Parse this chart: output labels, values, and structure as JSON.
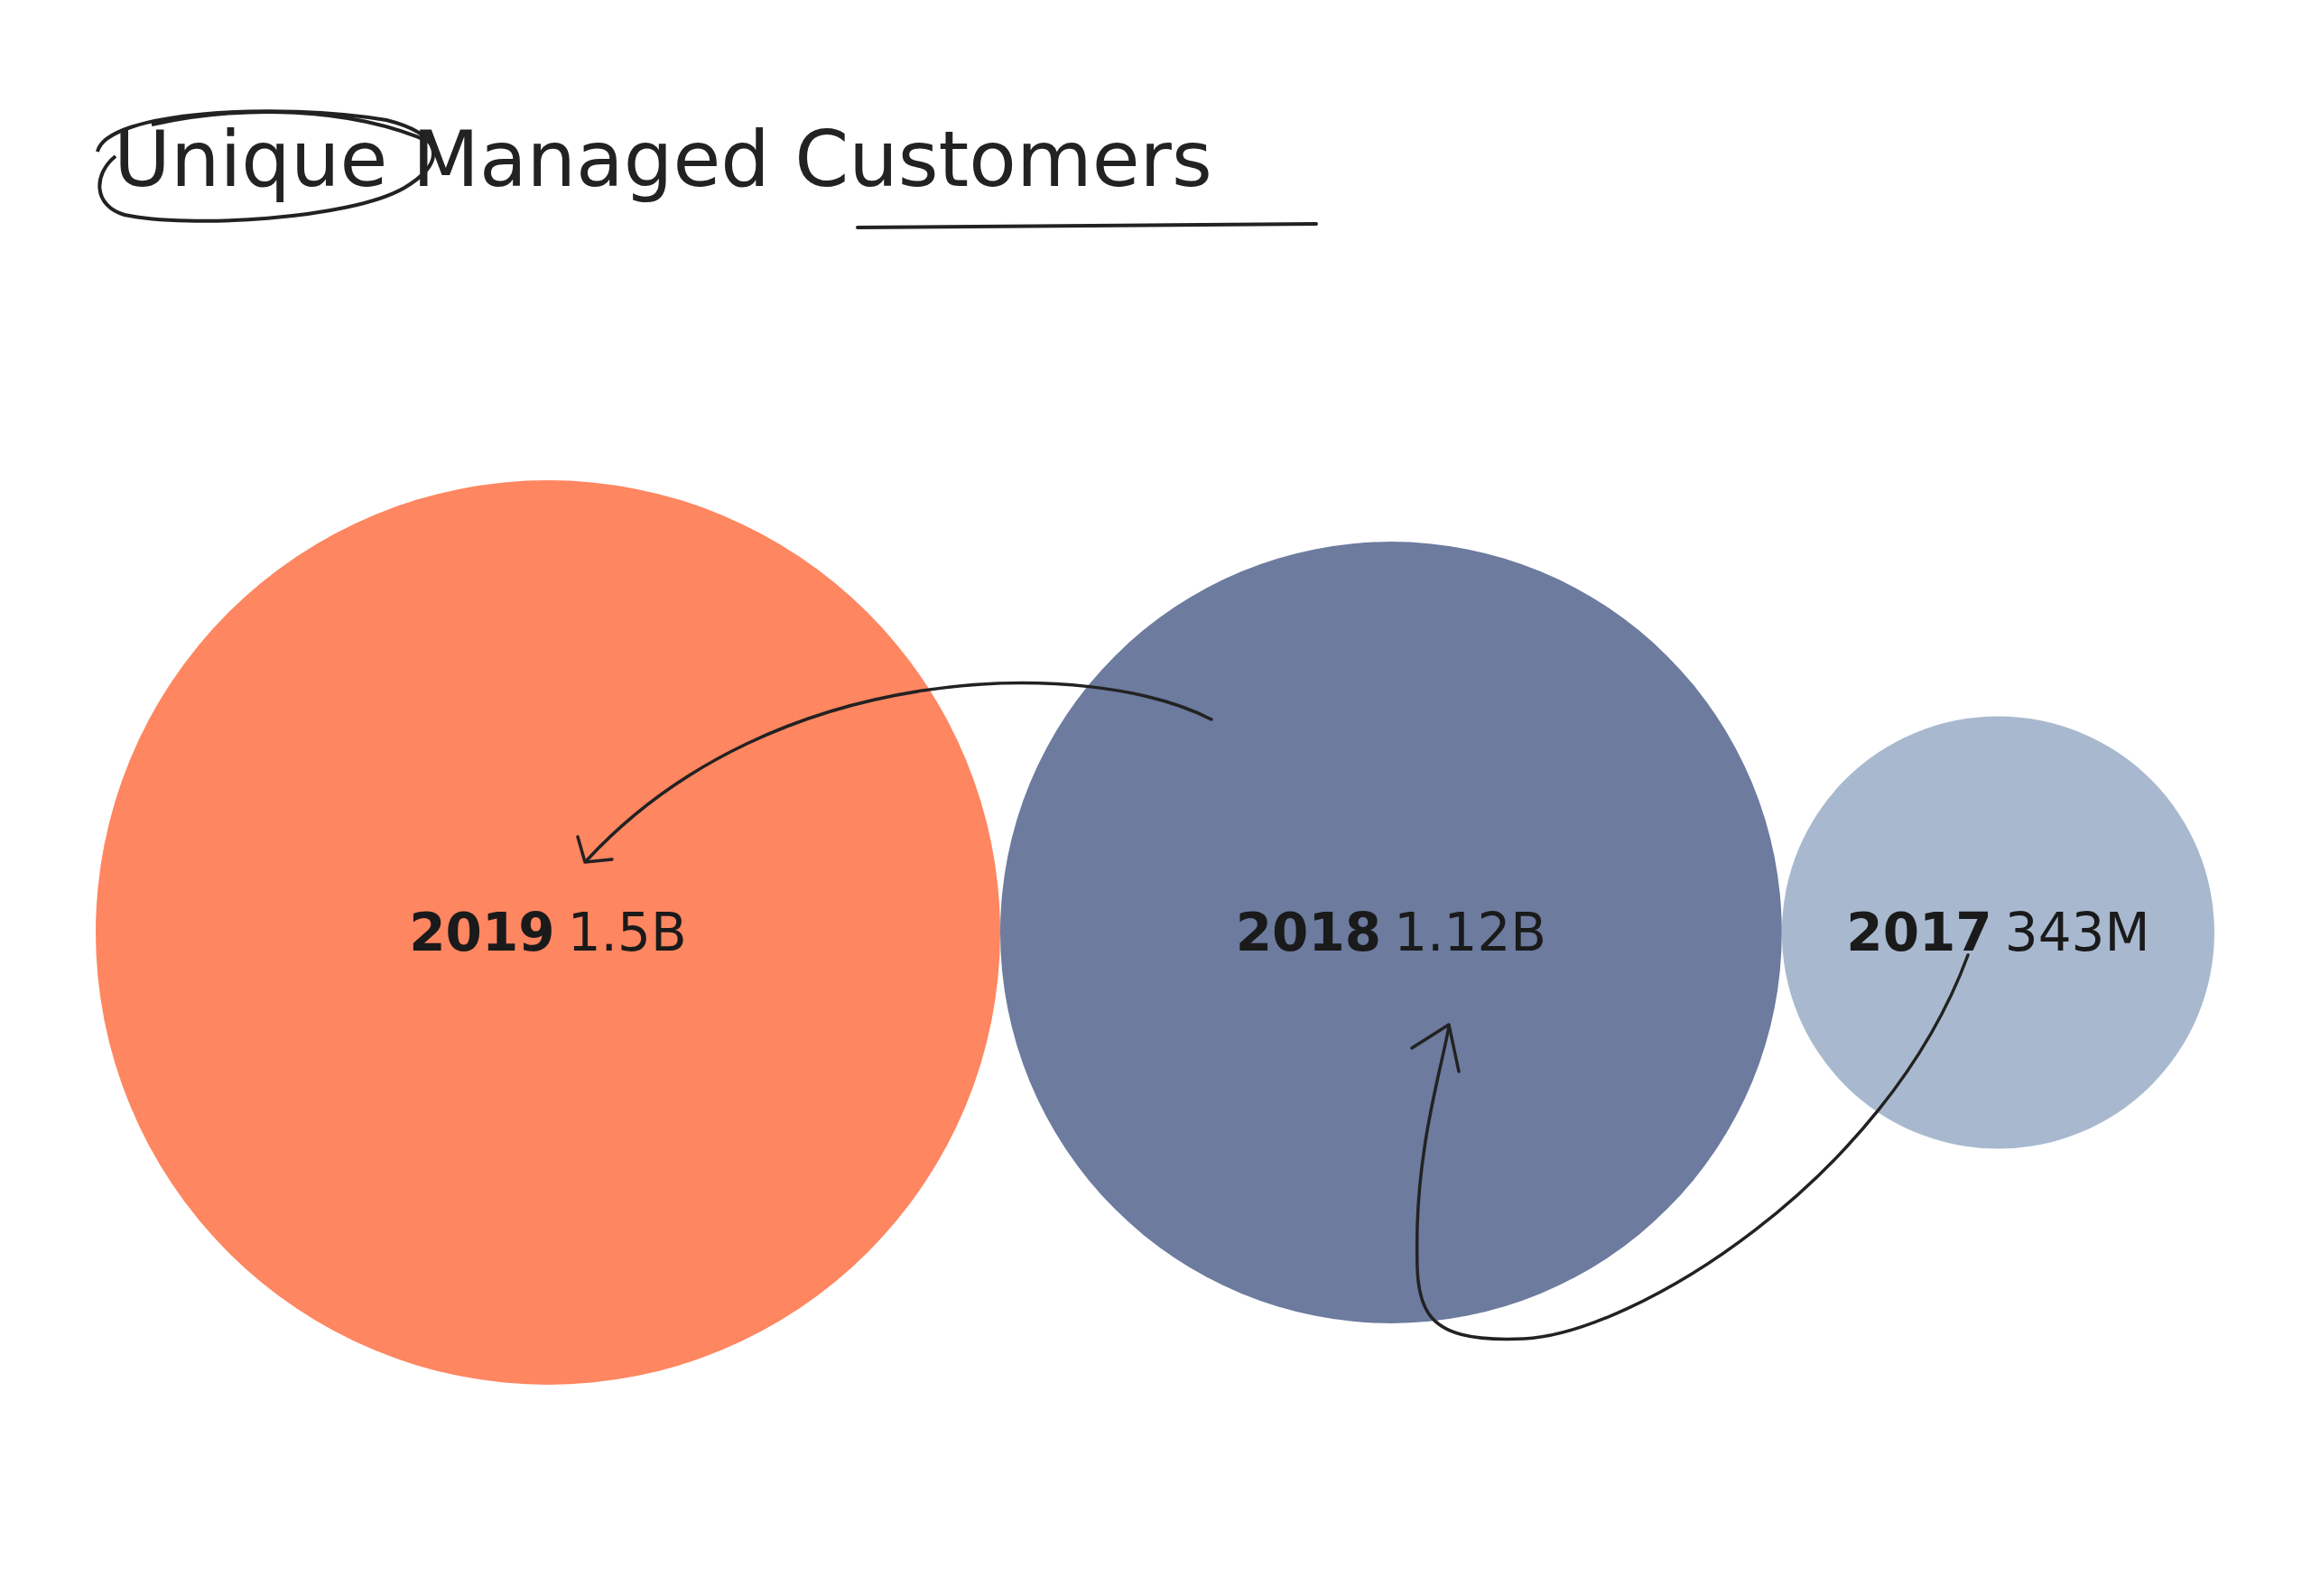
{
  "chart_data": {
    "type": "other",
    "title": "Unique Managed Customers",
    "categories": [
      "2019",
      "2018",
      "2017"
    ],
    "values": [
      1500000000,
      1120000000,
      343000000
    ],
    "value_labels": [
      "1.5B",
      "1.12B",
      "343M"
    ],
    "colors": [
      "#fe8660",
      "#6c7b9e",
      "#a8b9cf"
    ]
  }
}
